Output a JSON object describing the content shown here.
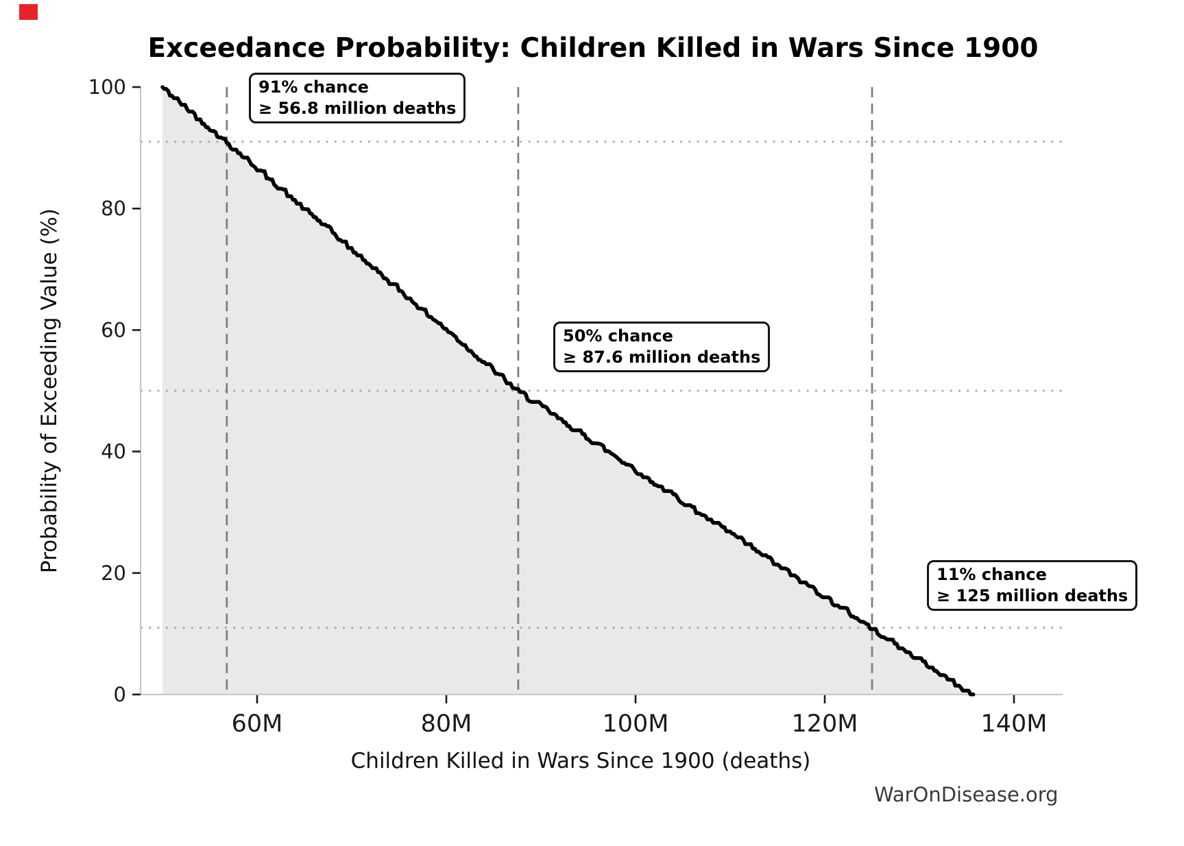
{
  "corner_marker": {
    "color": "#e62328"
  },
  "watermark": "WarOnDisease.org",
  "chart_data": {
    "type": "area",
    "title": "Exceedance Probability: Children Killed in Wars Since 1900",
    "xlabel": "Children Killed in Wars Since 1900 (deaths)",
    "ylabel": "Probability of Exceeding Value (%)",
    "x_tick_labels": [
      "60M",
      "80M",
      "100M",
      "120M",
      "140M"
    ],
    "x_tick_values": [
      60,
      80,
      100,
      120,
      140
    ],
    "y_tick_values": [
      0,
      20,
      40,
      60,
      80,
      100
    ],
    "xlim": [
      47.7,
      145.1
    ],
    "ylim": [
      0,
      100
    ],
    "x_unit": "millions of deaths",
    "grid": "off",
    "legend": "none",
    "curve": {
      "description": "Exceedance (survival) curve: probability in % of exceeding x million deaths",
      "anchors_x_millions": [
        50,
        56.8,
        87.6,
        125,
        135.7
      ],
      "anchors_probability_pct": [
        100,
        91,
        50,
        11,
        0
      ]
    },
    "line_color": "#000000",
    "fill_color": "#e9e9e9",
    "vline_color": "#7f7f7f",
    "hline_color": "#a6a6a6",
    "spine_color": "#c9c9c9",
    "tick_color": "#1a1a1a",
    "annotations": [
      {
        "line1": "91% chance",
        "line2": "≥ 56.8 million deaths",
        "x_millions": 56.8,
        "probability_pct": 91
      },
      {
        "line1": "50% chance",
        "line2": "≥ 87.6 million deaths",
        "x_millions": 87.6,
        "probability_pct": 50
      },
      {
        "line1": "11% chance",
        "line2": "≥ 125 million deaths",
        "x_millions": 125,
        "probability_pct": 11
      }
    ]
  }
}
